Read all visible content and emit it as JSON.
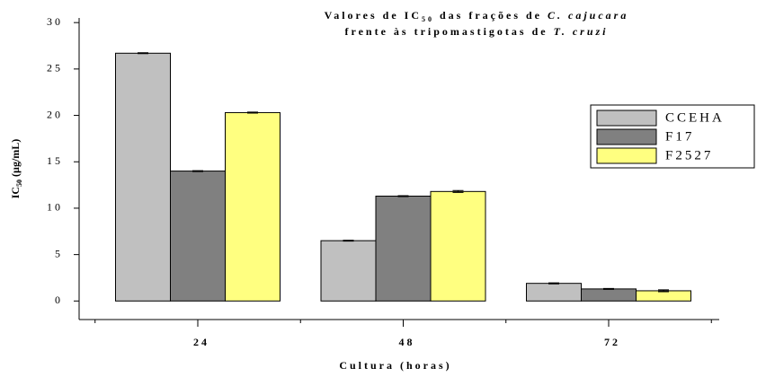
{
  "chart_data": {
    "type": "bar",
    "title": [
      [
        {
          "text": "Valores de IC"
        },
        {
          "text": "50",
          "sub": true
        },
        {
          "text": " das frações de "
        },
        {
          "text": "C. cajucara",
          "italic": true
        }
      ],
      [
        {
          "text": "frente às tripomastigotas de "
        },
        {
          "text": "T. cruzi",
          "italic": true
        }
      ]
    ],
    "ylabel": [
      {
        "text": "IC"
      },
      {
        "text": "50",
        "sub": true
      },
      {
        "text": " (µg/mL)"
      }
    ],
    "xlabel": "Cultura (horas)",
    "categories": [
      "24",
      "48",
      "72"
    ],
    "series": [
      {
        "name": "CCEHA",
        "color": "#c0c0c0",
        "values": [
          26.7,
          6.5,
          1.9
        ],
        "errors": [
          0.05,
          0.05,
          0.05
        ]
      },
      {
        "name": "F17",
        "color": "#808080",
        "values": [
          14.0,
          11.3,
          1.3
        ],
        "errors": [
          0.05,
          0.05,
          0.05
        ]
      },
      {
        "name": "F2527",
        "color": "#ffff80",
        "values": [
          20.3,
          11.8,
          1.1
        ],
        "errors": [
          0.05,
          0.1,
          0.1
        ]
      }
    ],
    "ylim": [
      -2,
      30.5
    ],
    "yticks": [
      0,
      5,
      10,
      15,
      20,
      25,
      30
    ],
    "legend": "right"
  }
}
